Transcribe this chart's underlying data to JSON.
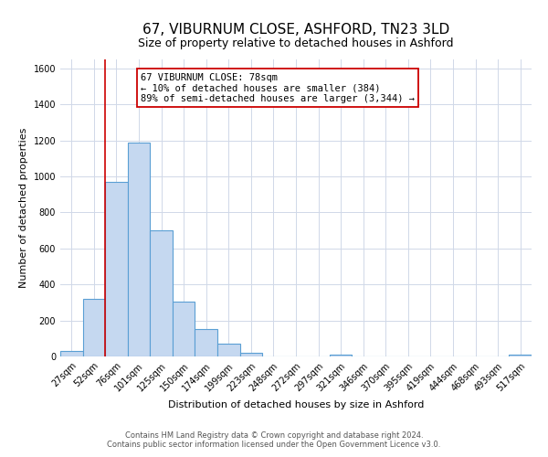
{
  "title": "67, VIBURNUM CLOSE, ASHFORD, TN23 3LD",
  "subtitle": "Size of property relative to detached houses in Ashford",
  "xlabel": "Distribution of detached houses by size in Ashford",
  "ylabel": "Number of detached properties",
  "bar_labels": [
    "27sqm",
    "52sqm",
    "76sqm",
    "101sqm",
    "125sqm",
    "150sqm",
    "174sqm",
    "199sqm",
    "223sqm",
    "248sqm",
    "272sqm",
    "297sqm",
    "321sqm",
    "346sqm",
    "370sqm",
    "395sqm",
    "419sqm",
    "444sqm",
    "468sqm",
    "493sqm",
    "517sqm"
  ],
  "bar_heights": [
    30,
    320,
    970,
    1190,
    700,
    305,
    150,
    70,
    20,
    0,
    0,
    0,
    10,
    0,
    0,
    0,
    0,
    0,
    0,
    0,
    10
  ],
  "bar_color": "#c5d8f0",
  "bar_edgecolor": "#5a9fd4",
  "bar_linewidth": 0.8,
  "vline_color": "#cc0000",
  "vline_linewidth": 1.2,
  "ylim": [
    0,
    1650
  ],
  "yticks": [
    0,
    200,
    400,
    600,
    800,
    1000,
    1200,
    1400,
    1600
  ],
  "annotation_text": "67 VIBURNUM CLOSE: 78sqm\n← 10% of detached houses are smaller (384)\n89% of semi-detached houses are larger (3,344) →",
  "annotation_box_edgecolor": "#cc0000",
  "annotation_box_facecolor": "#ffffff",
  "footer_line1": "Contains HM Land Registry data © Crown copyright and database right 2024.",
  "footer_line2": "Contains public sector information licensed under the Open Government Licence v3.0.",
  "background_color": "#ffffff",
  "grid_color": "#d0d8e8",
  "title_fontsize": 11,
  "subtitle_fontsize": 9,
  "ylabel_fontsize": 8,
  "xlabel_fontsize": 8,
  "tick_fontsize": 7,
  "annotation_fontsize": 7.5,
  "footer_fontsize": 6
}
